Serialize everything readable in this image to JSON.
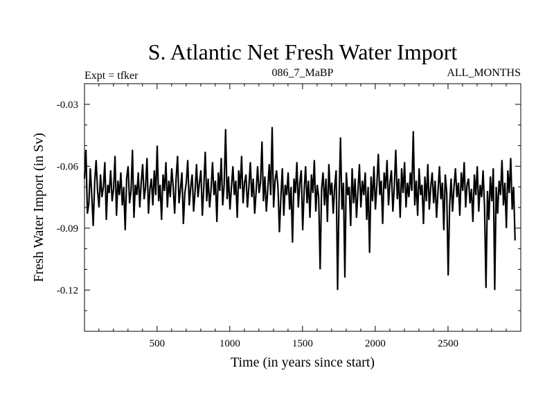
{
  "chart_data": {
    "type": "line",
    "title": "S. Atlantic Net Fresh Water Import",
    "header_left": "Expt = tfker",
    "header_center": "086_7_MaBP",
    "header_right": "ALL_MONTHS",
    "xlabel": "Time (in years since start)",
    "ylabel": "Fresh Water Import (in Sv)",
    "xlim": [
      1,
      3000
    ],
    "ylim": [
      -0.14,
      -0.02
    ],
    "x_ticks": [
      500,
      1000,
      1500,
      2000,
      2500
    ],
    "x_tick_labels": [
      "500",
      "1000",
      "1500",
      "2000",
      "2500"
    ],
    "y_ticks": [
      -0.03,
      -0.06,
      -0.09,
      -0.12
    ],
    "y_tick_labels": [
      "-0.03",
      "-0.06",
      "-0.09",
      "-0.12"
    ],
    "grid": false,
    "series": [
      {
        "x_start": 1,
        "x_step": 10,
        "values": [
          -0.066,
          -0.052,
          -0.083,
          -0.078,
          -0.061,
          -0.074,
          -0.089,
          -0.068,
          -0.057,
          -0.072,
          -0.08,
          -0.064,
          -0.075,
          -0.07,
          -0.058,
          -0.086,
          -0.069,
          -0.073,
          -0.062,
          -0.077,
          -0.071,
          -0.055,
          -0.084,
          -0.067,
          -0.074,
          -0.063,
          -0.079,
          -0.07,
          -0.091,
          -0.066,
          -0.06,
          -0.078,
          -0.072,
          -0.052,
          -0.085,
          -0.069,
          -0.074,
          -0.063,
          -0.08,
          -0.068,
          -0.059,
          -0.076,
          -0.07,
          -0.056,
          -0.083,
          -0.071,
          -0.066,
          -0.079,
          -0.062,
          -0.074,
          -0.05,
          -0.077,
          -0.069,
          -0.086,
          -0.064,
          -0.072,
          -0.058,
          -0.08,
          -0.067,
          -0.075,
          -0.061,
          -0.07,
          -0.083,
          -0.066,
          -0.055,
          -0.078,
          -0.071,
          -0.063,
          -0.088,
          -0.073,
          -0.068,
          -0.057,
          -0.079,
          -0.07,
          -0.064,
          -0.082,
          -0.072,
          -0.059,
          -0.075,
          -0.068,
          -0.062,
          -0.084,
          -0.07,
          -0.053,
          -0.077,
          -0.066,
          -0.08,
          -0.071,
          -0.058,
          -0.074,
          -0.067,
          -0.087,
          -0.063,
          -0.072,
          -0.056,
          -0.079,
          -0.069,
          -0.042,
          -0.076,
          -0.065,
          -0.081,
          -0.07,
          -0.06,
          -0.074,
          -0.067,
          -0.085,
          -0.062,
          -0.071,
          -0.055,
          -0.078,
          -0.068,
          -0.064,
          -0.08,
          -0.07,
          -0.058,
          -0.075,
          -0.066,
          -0.083,
          -0.072,
          -0.06,
          -0.073,
          -0.068,
          -0.048,
          -0.077,
          -0.065,
          -0.082,
          -0.071,
          -0.059,
          -0.074,
          -0.041,
          -0.08,
          -0.067,
          -0.062,
          -0.07,
          -0.092,
          -0.075,
          -0.061,
          -0.084,
          -0.069,
          -0.074,
          -0.063,
          -0.081,
          -0.07,
          -0.097,
          -0.066,
          -0.073,
          -0.058,
          -0.08,
          -0.068,
          -0.062,
          -0.091,
          -0.072,
          -0.06,
          -0.078,
          -0.067,
          -0.085,
          -0.064,
          -0.073,
          -0.057,
          -0.082,
          -0.069,
          -0.075,
          -0.11,
          -0.071,
          -0.063,
          -0.079,
          -0.066,
          -0.087,
          -0.059,
          -0.074,
          -0.068,
          -0.083,
          -0.07,
          -0.062,
          -0.12,
          -0.076,
          -0.046,
          -0.081,
          -0.068,
          -0.114,
          -0.063,
          -0.074,
          -0.07,
          -0.089,
          -0.061,
          -0.078,
          -0.066,
          -0.085,
          -0.072,
          -0.059,
          -0.08,
          -0.067,
          -0.074,
          -0.063,
          -0.086,
          -0.07,
          -0.102,
          -0.065,
          -0.077,
          -0.06,
          -0.081,
          -0.069,
          -0.054,
          -0.074,
          -0.067,
          -0.088,
          -0.063,
          -0.071,
          -0.057,
          -0.079,
          -0.068,
          -0.062,
          -0.082,
          -0.07,
          -0.052,
          -0.076,
          -0.066,
          -0.085,
          -0.061,
          -0.073,
          -0.058,
          -0.08,
          -0.068,
          -0.075,
          -0.063,
          -0.072,
          -0.043,
          -0.079,
          -0.067,
          -0.084,
          -0.061,
          -0.074,
          -0.069,
          -0.088,
          -0.065,
          -0.077,
          -0.059,
          -0.081,
          -0.07,
          -0.063,
          -0.078,
          -0.067,
          -0.085,
          -0.072,
          -0.06,
          -0.076,
          -0.068,
          -0.091,
          -0.064,
          -0.073,
          -0.113,
          -0.079,
          -0.066,
          -0.082,
          -0.07,
          -0.061,
          -0.075,
          -0.068,
          -0.084,
          -0.063,
          -0.072,
          -0.058,
          -0.08,
          -0.069,
          -0.066,
          -0.078,
          -0.071,
          -0.087,
          -0.064,
          -0.074,
          -0.06,
          -0.082,
          -0.069,
          -0.075,
          -0.062,
          -0.08,
          -0.119,
          -0.072,
          -0.086,
          -0.065,
          -0.077,
          -0.061,
          -0.12,
          -0.07,
          -0.083,
          -0.067,
          -0.074,
          -0.057,
          -0.079,
          -0.068,
          -0.09,
          -0.062,
          -0.073,
          -0.056,
          -0.081,
          -0.07,
          -0.096
        ]
      }
    ]
  }
}
